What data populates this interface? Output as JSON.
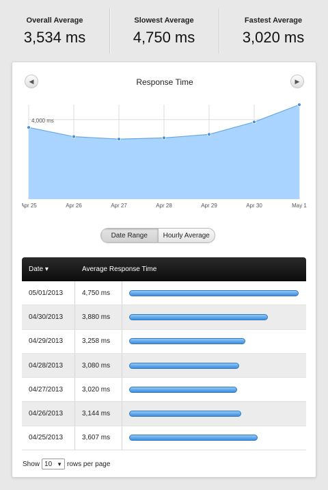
{
  "stats": [
    {
      "label": "Overall Average",
      "value": "3,534 ms"
    },
    {
      "label": "Slowest Average",
      "value": "4,750 ms"
    },
    {
      "label": "Fastest Average",
      "value": "3,020 ms"
    }
  ],
  "chart": {
    "title": "Response Time",
    "prev_icon": "◀",
    "next_icon": "▶"
  },
  "chart_data": {
    "type": "area",
    "x": [
      "Apr 25",
      "Apr 26",
      "Apr 27",
      "Apr 28",
      "Apr 29",
      "Apr 30",
      "May 1"
    ],
    "values": [
      3607,
      3144,
      3020,
      3080,
      3258,
      3880,
      4750
    ],
    "annotations": [
      "4,000 ms"
    ],
    "ylim": [
      0,
      4750
    ],
    "fill_color": "#a8d4ff",
    "line_color": "#6aa8e0",
    "grid": true
  },
  "toggle": {
    "date_range": "Date Range",
    "hourly_average": "Hourly Average"
  },
  "table": {
    "col_date": "Date ▾",
    "col_avg": "Average Response Time",
    "max_ms": 4750,
    "rows": [
      {
        "date": "05/01/2013",
        "ms": "4,750 ms",
        "value": 4750
      },
      {
        "date": "04/30/2013",
        "ms": "3,880 ms",
        "value": 3880
      },
      {
        "date": "04/29/2013",
        "ms": "3,258 ms",
        "value": 3258
      },
      {
        "date": "04/28/2013",
        "ms": "3,080 ms",
        "value": 3080
      },
      {
        "date": "04/27/2013",
        "ms": "3,020 ms",
        "value": 3020
      },
      {
        "date": "04/26/2013",
        "ms": "3,144 ms",
        "value": 3144
      },
      {
        "date": "04/25/2013",
        "ms": "3,607 ms",
        "value": 3607
      }
    ]
  },
  "footer": {
    "show": "Show",
    "rows_value": "10",
    "rows_per_page": "rows per page"
  }
}
